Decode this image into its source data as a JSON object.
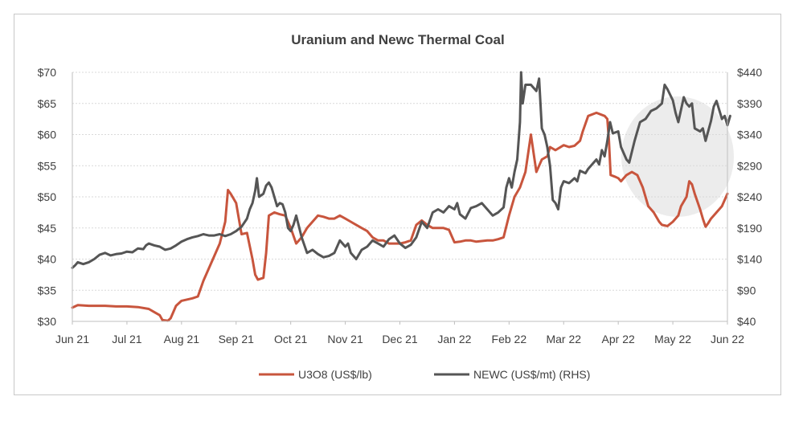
{
  "chart_data": {
    "type": "line",
    "title": "Uranium and Newc Thermal Coal",
    "xlabel": "",
    "ylabel": "",
    "x_ticks": [
      "Jun 21",
      "Jul 21",
      "Aug 21",
      "Sep 21",
      "Oct 21",
      "Nov 21",
      "Dec 21",
      "Jan 22",
      "Feb 22",
      "Mar 22",
      "Apr 22",
      "May 22",
      "Jun 22"
    ],
    "y_left": {
      "ticks": [
        "$30",
        "$35",
        "$40",
        "$45",
        "$50",
        "$55",
        "$60",
        "$65",
        "$70"
      ],
      "range": [
        30,
        70
      ]
    },
    "y_right": {
      "ticks": [
        "$40",
        "$90",
        "$140",
        "$190",
        "$240",
        "$290",
        "$340",
        "$390",
        "$440"
      ],
      "range": [
        40,
        440
      ]
    },
    "grid": true,
    "legend_position": "bottom",
    "highlight": "ellipse-right",
    "series": [
      {
        "name": "U3O8 (US$/lb)",
        "axis": "left",
        "color": "#c8553d",
        "points": [
          [
            0,
            32.2
          ],
          [
            0.1,
            32.6
          ],
          [
            0.3,
            32.5
          ],
          [
            0.6,
            32.5
          ],
          [
            0.8,
            32.4
          ],
          [
            1.0,
            32.4
          ],
          [
            1.2,
            32.3
          ],
          [
            1.4,
            32.0
          ],
          [
            1.5,
            31.5
          ],
          [
            1.6,
            31.0
          ],
          [
            1.65,
            30.2
          ],
          [
            1.75,
            30.1
          ],
          [
            1.8,
            30.5
          ],
          [
            1.9,
            32.5
          ],
          [
            2.0,
            33.3
          ],
          [
            2.2,
            33.7
          ],
          [
            2.3,
            34.0
          ],
          [
            2.4,
            36.5
          ],
          [
            2.5,
            38.5
          ],
          [
            2.6,
            40.5
          ],
          [
            2.7,
            42.5
          ],
          [
            2.8,
            46.0
          ],
          [
            2.85,
            51.1
          ],
          [
            2.9,
            50.5
          ],
          [
            3.0,
            49.0
          ],
          [
            3.1,
            44.0
          ],
          [
            3.2,
            44.2
          ],
          [
            3.3,
            40.0
          ],
          [
            3.35,
            37.5
          ],
          [
            3.4,
            36.7
          ],
          [
            3.5,
            37.0
          ],
          [
            3.55,
            41.0
          ],
          [
            3.6,
            47.0
          ],
          [
            3.7,
            47.5
          ],
          [
            3.8,
            47.2
          ],
          [
            3.9,
            47.0
          ],
          [
            4.0,
            45.0
          ],
          [
            4.1,
            42.5
          ],
          [
            4.2,
            43.5
          ],
          [
            4.3,
            45.0
          ],
          [
            4.4,
            46.0
          ],
          [
            4.5,
            47.0
          ],
          [
            4.6,
            46.8
          ],
          [
            4.7,
            46.5
          ],
          [
            4.8,
            46.5
          ],
          [
            4.9,
            47.0
          ],
          [
            5.0,
            46.5
          ],
          [
            5.1,
            46.0
          ],
          [
            5.2,
            45.5
          ],
          [
            5.3,
            45.0
          ],
          [
            5.4,
            44.5
          ],
          [
            5.5,
            43.5
          ],
          [
            5.6,
            43.0
          ],
          [
            5.7,
            43.0
          ],
          [
            5.8,
            42.5
          ],
          [
            5.9,
            42.5
          ],
          [
            6.0,
            42.5
          ],
          [
            6.1,
            42.7
          ],
          [
            6.2,
            43.0
          ],
          [
            6.3,
            45.5
          ],
          [
            6.4,
            46.2
          ],
          [
            6.5,
            45.5
          ],
          [
            6.6,
            45.0
          ],
          [
            6.7,
            45.0
          ],
          [
            6.8,
            45.0
          ],
          [
            6.9,
            44.7
          ],
          [
            7.0,
            42.7
          ],
          [
            7.1,
            42.8
          ],
          [
            7.2,
            43.0
          ],
          [
            7.3,
            43.0
          ],
          [
            7.4,
            42.8
          ],
          [
            7.5,
            42.9
          ],
          [
            7.6,
            43.0
          ],
          [
            7.7,
            43.0
          ],
          [
            7.8,
            43.2
          ],
          [
            7.9,
            43.5
          ],
          [
            8.0,
            47.0
          ],
          [
            8.05,
            48.5
          ],
          [
            8.1,
            50.0
          ],
          [
            8.2,
            51.5
          ],
          [
            8.3,
            54.0
          ],
          [
            8.35,
            57.0
          ],
          [
            8.4,
            60.0
          ],
          [
            8.45,
            57.0
          ],
          [
            8.5,
            54.0
          ],
          [
            8.55,
            55.0
          ],
          [
            8.6,
            56.0
          ],
          [
            8.7,
            56.5
          ],
          [
            8.75,
            58.0
          ],
          [
            8.85,
            57.5
          ],
          [
            9.0,
            58.3
          ],
          [
            9.1,
            58.0
          ],
          [
            9.2,
            58.2
          ],
          [
            9.3,
            59.0
          ],
          [
            9.35,
            60.5
          ],
          [
            9.45,
            63.0
          ],
          [
            9.6,
            63.5
          ],
          [
            9.75,
            63.0
          ],
          [
            9.8,
            62.5
          ],
          [
            9.83,
            59.0
          ],
          [
            9.86,
            53.5
          ],
          [
            9.95,
            53.2
          ],
          [
            10.0,
            53.0
          ],
          [
            10.05,
            52.5
          ],
          [
            10.15,
            53.5
          ],
          [
            10.25,
            54.0
          ],
          [
            10.35,
            53.5
          ],
          [
            10.45,
            51.5
          ],
          [
            10.55,
            48.5
          ],
          [
            10.65,
            47.5
          ],
          [
            10.75,
            46.0
          ],
          [
            10.8,
            45.5
          ],
          [
            10.9,
            45.3
          ],
          [
            11.0,
            46.0
          ],
          [
            11.05,
            46.5
          ],
          [
            11.1,
            47.0
          ],
          [
            11.15,
            48.5
          ],
          [
            11.25,
            50.0
          ],
          [
            11.3,
            52.5
          ],
          [
            11.35,
            52.0
          ],
          [
            11.4,
            50.5
          ],
          [
            11.5,
            48.0
          ],
          [
            11.55,
            46.5
          ],
          [
            11.6,
            45.2
          ],
          [
            11.65,
            45.8
          ],
          [
            11.7,
            46.5
          ],
          [
            11.75,
            47.0
          ],
          [
            11.8,
            47.5
          ],
          [
            11.9,
            48.5
          ],
          [
            12.0,
            50.5
          ]
        ]
      },
      {
        "name": "NEWC (US$/mt) (RHS)",
        "axis": "right",
        "color": "#555555",
        "points": [
          [
            0,
            126
          ],
          [
            0.05,
            130
          ],
          [
            0.1,
            135
          ],
          [
            0.2,
            132
          ],
          [
            0.3,
            135
          ],
          [
            0.4,
            140
          ],
          [
            0.5,
            147
          ],
          [
            0.6,
            150
          ],
          [
            0.7,
            146
          ],
          [
            0.8,
            148
          ],
          [
            0.9,
            149
          ],
          [
            1.0,
            152
          ],
          [
            1.1,
            151
          ],
          [
            1.2,
            157
          ],
          [
            1.3,
            156
          ],
          [
            1.35,
            162
          ],
          [
            1.4,
            165
          ],
          [
            1.5,
            162
          ],
          [
            1.6,
            160
          ],
          [
            1.7,
            155
          ],
          [
            1.8,
            157
          ],
          [
            1.9,
            162
          ],
          [
            2.0,
            168
          ],
          [
            2.1,
            172
          ],
          [
            2.2,
            175
          ],
          [
            2.3,
            177
          ],
          [
            2.4,
            180
          ],
          [
            2.5,
            178
          ],
          [
            2.6,
            178
          ],
          [
            2.7,
            180
          ],
          [
            2.8,
            177
          ],
          [
            2.9,
            180
          ],
          [
            3.0,
            185
          ],
          [
            3.1,
            192
          ],
          [
            3.2,
            205
          ],
          [
            3.25,
            220
          ],
          [
            3.3,
            230
          ],
          [
            3.35,
            250
          ],
          [
            3.38,
            270
          ],
          [
            3.42,
            240
          ],
          [
            3.5,
            245
          ],
          [
            3.55,
            258
          ],
          [
            3.6,
            263
          ],
          [
            3.65,
            255
          ],
          [
            3.7,
            240
          ],
          [
            3.75,
            225
          ],
          [
            3.8,
            230
          ],
          [
            3.85,
            228
          ],
          [
            3.9,
            215
          ],
          [
            3.95,
            190
          ],
          [
            4.0,
            185
          ],
          [
            4.05,
            195
          ],
          [
            4.1,
            210
          ],
          [
            4.2,
            175
          ],
          [
            4.3,
            150
          ],
          [
            4.4,
            155
          ],
          [
            4.5,
            148
          ],
          [
            4.6,
            143
          ],
          [
            4.7,
            145
          ],
          [
            4.8,
            150
          ],
          [
            4.9,
            170
          ],
          [
            5.0,
            160
          ],
          [
            5.05,
            165
          ],
          [
            5.1,
            150
          ],
          [
            5.2,
            140
          ],
          [
            5.3,
            155
          ],
          [
            5.4,
            160
          ],
          [
            5.5,
            170
          ],
          [
            5.6,
            165
          ],
          [
            5.7,
            160
          ],
          [
            5.8,
            172
          ],
          [
            5.9,
            178
          ],
          [
            6.0,
            165
          ],
          [
            6.1,
            158
          ],
          [
            6.2,
            163
          ],
          [
            6.3,
            175
          ],
          [
            6.4,
            200
          ],
          [
            6.5,
            190
          ],
          [
            6.6,
            215
          ],
          [
            6.7,
            220
          ],
          [
            6.8,
            215
          ],
          [
            6.9,
            225
          ],
          [
            7.0,
            220
          ],
          [
            7.05,
            230
          ],
          [
            7.1,
            212
          ],
          [
            7.2,
            205
          ],
          [
            7.3,
            222
          ],
          [
            7.4,
            225
          ],
          [
            7.5,
            230
          ],
          [
            7.6,
            220
          ],
          [
            7.7,
            210
          ],
          [
            7.8,
            215
          ],
          [
            7.9,
            223
          ],
          [
            7.95,
            255
          ],
          [
            8.0,
            270
          ],
          [
            8.05,
            255
          ],
          [
            8.1,
            280
          ],
          [
            8.15,
            300
          ],
          [
            8.2,
            360
          ],
          [
            8.22,
            440
          ],
          [
            8.25,
            390
          ],
          [
            8.3,
            420
          ],
          [
            8.4,
            420
          ],
          [
            8.45,
            415
          ],
          [
            8.5,
            410
          ],
          [
            8.55,
            430
          ],
          [
            8.6,
            350
          ],
          [
            8.65,
            340
          ],
          [
            8.7,
            320
          ],
          [
            8.75,
            290
          ],
          [
            8.8,
            235
          ],
          [
            8.85,
            230
          ],
          [
            8.9,
            220
          ],
          [
            8.95,
            255
          ],
          [
            9.0,
            265
          ],
          [
            9.1,
            262
          ],
          [
            9.2,
            270
          ],
          [
            9.25,
            265
          ],
          [
            9.3,
            282
          ],
          [
            9.4,
            278
          ],
          [
            9.45,
            285
          ],
          [
            9.5,
            290
          ],
          [
            9.6,
            300
          ],
          [
            9.65,
            292
          ],
          [
            9.7,
            315
          ],
          [
            9.75,
            305
          ],
          [
            9.8,
            330
          ],
          [
            9.85,
            360
          ],
          [
            9.9,
            342
          ],
          [
            10.0,
            345
          ],
          [
            10.05,
            320
          ],
          [
            10.15,
            300
          ],
          [
            10.2,
            295
          ],
          [
            10.3,
            330
          ],
          [
            10.35,
            345
          ],
          [
            10.4,
            360
          ],
          [
            10.5,
            365
          ],
          [
            10.6,
            378
          ],
          [
            10.7,
            382
          ],
          [
            10.8,
            390
          ],
          [
            10.85,
            420
          ],
          [
            10.9,
            413
          ],
          [
            11.0,
            395
          ],
          [
            11.05,
            375
          ],
          [
            11.1,
            360
          ],
          [
            11.15,
            380
          ],
          [
            11.2,
            400
          ],
          [
            11.25,
            390
          ],
          [
            11.3,
            385
          ],
          [
            11.35,
            390
          ],
          [
            11.4,
            350
          ],
          [
            11.5,
            345
          ],
          [
            11.55,
            350
          ],
          [
            11.6,
            330
          ],
          [
            11.7,
            362
          ],
          [
            11.75,
            385
          ],
          [
            11.8,
            394
          ],
          [
            11.9,
            365
          ],
          [
            11.95,
            370
          ],
          [
            12.0,
            355
          ],
          [
            12.05,
            370
          ]
        ]
      }
    ]
  }
}
